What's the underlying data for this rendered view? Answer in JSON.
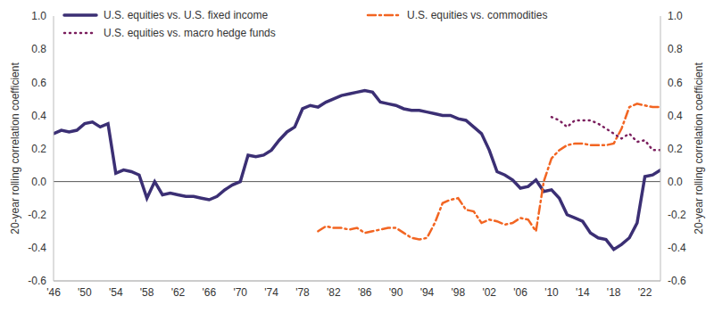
{
  "chart_data": {
    "type": "line",
    "y_label": "20-year rolling correlation coefficient",
    "y2_label": "20-year rolling correlation coefficient",
    "x": [
      1946,
      1947,
      1948,
      1949,
      1950,
      1951,
      1952,
      1953,
      1954,
      1955,
      1956,
      1957,
      1958,
      1959,
      1960,
      1961,
      1962,
      1963,
      1964,
      1965,
      1966,
      1967,
      1968,
      1969,
      1970,
      1971,
      1972,
      1973,
      1974,
      1975,
      1976,
      1977,
      1978,
      1979,
      1980,
      1981,
      1982,
      1983,
      1984,
      1985,
      1986,
      1987,
      1988,
      1989,
      1990,
      1991,
      1992,
      1993,
      1994,
      1995,
      1996,
      1997,
      1998,
      1999,
      2000,
      2001,
      2002,
      2003,
      2004,
      2005,
      2006,
      2007,
      2008,
      2009,
      2010,
      2011,
      2012,
      2013,
      2014,
      2015,
      2016,
      2017,
      2018,
      2019,
      2020,
      2021,
      2022,
      2023,
      2024
    ],
    "series": [
      {
        "name": "U.S. equities vs. U.S. fixed income",
        "color": "#3b2f74",
        "line_style": "solid",
        "values": [
          0.29,
          0.31,
          0.3,
          0.31,
          0.35,
          0.36,
          0.33,
          0.35,
          0.05,
          0.07,
          0.06,
          0.04,
          -0.1,
          0.0,
          -0.08,
          -0.07,
          -0.08,
          -0.09,
          -0.09,
          -0.1,
          -0.11,
          -0.09,
          -0.05,
          -0.02,
          0.0,
          0.16,
          0.15,
          0.16,
          0.19,
          0.25,
          0.3,
          0.33,
          0.44,
          0.46,
          0.45,
          0.48,
          0.5,
          0.52,
          0.53,
          0.54,
          0.55,
          0.54,
          0.48,
          0.47,
          0.46,
          0.44,
          0.43,
          0.43,
          0.42,
          0.41,
          0.4,
          0.4,
          0.38,
          0.37,
          0.33,
          0.29,
          0.19,
          0.06,
          0.04,
          0.01,
          -0.04,
          -0.03,
          0.01,
          -0.06,
          -0.05,
          -0.1,
          -0.2,
          -0.22,
          -0.24,
          -0.31,
          -0.34,
          -0.35,
          -0.41,
          -0.38,
          -0.34,
          -0.25,
          0.03,
          0.04,
          0.07
        ]
      },
      {
        "name": "U.S. equities vs. commodities",
        "color": "#f26522",
        "line_style": "dashdot",
        "values": [
          null,
          null,
          null,
          null,
          null,
          null,
          null,
          null,
          null,
          null,
          null,
          null,
          null,
          null,
          null,
          null,
          null,
          null,
          null,
          null,
          null,
          null,
          null,
          null,
          null,
          null,
          null,
          null,
          null,
          null,
          null,
          null,
          null,
          null,
          -0.3,
          -0.27,
          -0.28,
          -0.28,
          -0.29,
          -0.28,
          -0.31,
          -0.3,
          -0.29,
          -0.28,
          -0.28,
          -0.31,
          -0.34,
          -0.35,
          -0.34,
          -0.25,
          -0.13,
          -0.11,
          -0.1,
          -0.17,
          -0.18,
          -0.25,
          -0.23,
          -0.24,
          -0.26,
          -0.25,
          -0.22,
          -0.23,
          -0.3,
          0.0,
          0.14,
          0.19,
          0.22,
          0.23,
          0.23,
          0.22,
          0.22,
          0.22,
          0.23,
          0.32,
          0.45,
          0.47,
          0.46,
          0.45,
          0.45
        ]
      },
      {
        "name": "U.S. equities vs. macro hedge funds",
        "color": "#7b1f5e",
        "line_style": "dotted",
        "values": [
          null,
          null,
          null,
          null,
          null,
          null,
          null,
          null,
          null,
          null,
          null,
          null,
          null,
          null,
          null,
          null,
          null,
          null,
          null,
          null,
          null,
          null,
          null,
          null,
          null,
          null,
          null,
          null,
          null,
          null,
          null,
          null,
          null,
          null,
          null,
          null,
          null,
          null,
          null,
          null,
          null,
          null,
          null,
          null,
          null,
          null,
          null,
          null,
          null,
          null,
          null,
          null,
          null,
          null,
          null,
          null,
          null,
          null,
          null,
          null,
          null,
          null,
          null,
          null,
          0.39,
          0.37,
          0.33,
          0.37,
          0.37,
          0.37,
          0.35,
          0.32,
          0.29,
          0.26,
          0.29,
          0.24,
          0.25,
          0.19,
          0.19
        ]
      }
    ],
    "xlim": [
      1946,
      2024
    ],
    "xticks": [
      {
        "value": 1946,
        "label": "'46"
      },
      {
        "value": 1950,
        "label": "'50"
      },
      {
        "value": 1954,
        "label": "'54"
      },
      {
        "value": 1958,
        "label": "'58"
      },
      {
        "value": 1962,
        "label": "'62"
      },
      {
        "value": 1966,
        "label": "'66"
      },
      {
        "value": 1970,
        "label": "'70"
      },
      {
        "value": 1974,
        "label": "'74"
      },
      {
        "value": 1978,
        "label": "'78"
      },
      {
        "value": 1982,
        "label": "'82"
      },
      {
        "value": 1986,
        "label": "'86"
      },
      {
        "value": 1990,
        "label": "'90"
      },
      {
        "value": 1994,
        "label": "'94"
      },
      {
        "value": 1998,
        "label": "'98"
      },
      {
        "value": 2002,
        "label": "'02"
      },
      {
        "value": 2006,
        "label": "'06"
      },
      {
        "value": 2010,
        "label": "'10"
      },
      {
        "value": 2014,
        "label": "'14"
      },
      {
        "value": 2018,
        "label": "'18"
      },
      {
        "value": 2022,
        "label": "'22"
      }
    ],
    "ylim": [
      -0.6,
      1.0
    ],
    "yticks": [
      -0.6,
      -0.4,
      -0.2,
      {
        "value": 0,
        "label": "0.0"
      },
      0.2,
      0.4,
      0.6,
      0.8,
      {
        "value": 1,
        "label": "1.0"
      }
    ],
    "y2lim": [
      -0.6,
      1.0
    ],
    "y2ticks": [
      -0.6,
      -0.4,
      -0.2,
      {
        "value": 0,
        "label": "0.0"
      },
      0.2,
      0.4,
      0.6,
      0.8,
      {
        "value": 1,
        "label": "1.0"
      }
    ],
    "grid": false,
    "legend": "top"
  }
}
